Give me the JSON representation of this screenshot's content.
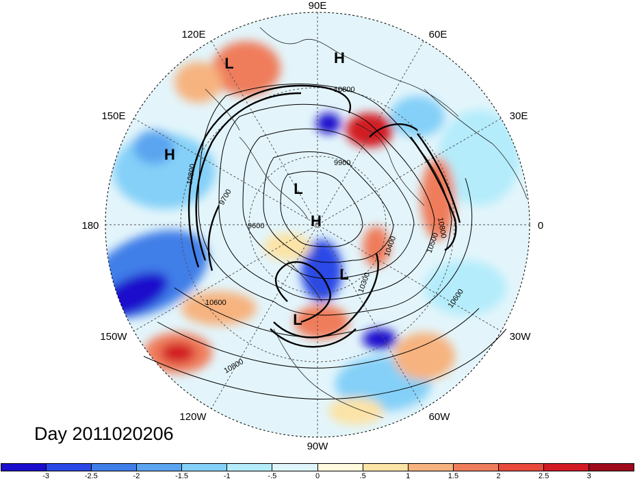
{
  "map": {
    "title": "Day 2011020206",
    "longitude_labels": {
      "top": "90E",
      "upper_right": "60E",
      "right_upper": "30E",
      "right": "0",
      "right_lower": "30W",
      "lower_right": "60W",
      "bottom": "90W",
      "lower_left": "120W",
      "left_lower": "150W",
      "left": "180",
      "left_upper": "150E",
      "upper_left": "120E"
    },
    "pressure_centers": [
      {
        "id": "L-120E",
        "label": "L"
      },
      {
        "id": "H-90E",
        "label": "H"
      },
      {
        "id": "H-150E",
        "label": "H"
      },
      {
        "id": "L-pole",
        "label": "L"
      },
      {
        "id": "H-pole",
        "label": "H"
      },
      {
        "id": "L-canada",
        "label": "L"
      },
      {
        "id": "L-usa",
        "label": "L"
      }
    ],
    "contour_labels": [
      "10800",
      "9900",
      "10800",
      "10600",
      "9700",
      "9600",
      "10400",
      "10500",
      "10300",
      "10800",
      "10600",
      "10800"
    ],
    "colorbar": {
      "colors": [
        "#1a0dcc",
        "#2a48e6",
        "#3f7ee8",
        "#5aa4f0",
        "#84d0f8",
        "#b4ecfb",
        "#def6fb",
        "#fffadd",
        "#fce3a6",
        "#f6b37f",
        "#ef7d5c",
        "#e84a3c",
        "#d11a24",
        "#9e0a1c"
      ],
      "ticks": [
        "-3",
        "-2.5",
        "-2",
        "-1.5",
        "-1",
        "-.5",
        "0",
        ".5",
        "1",
        "1.5",
        "2",
        "2.5",
        "3"
      ]
    }
  }
}
